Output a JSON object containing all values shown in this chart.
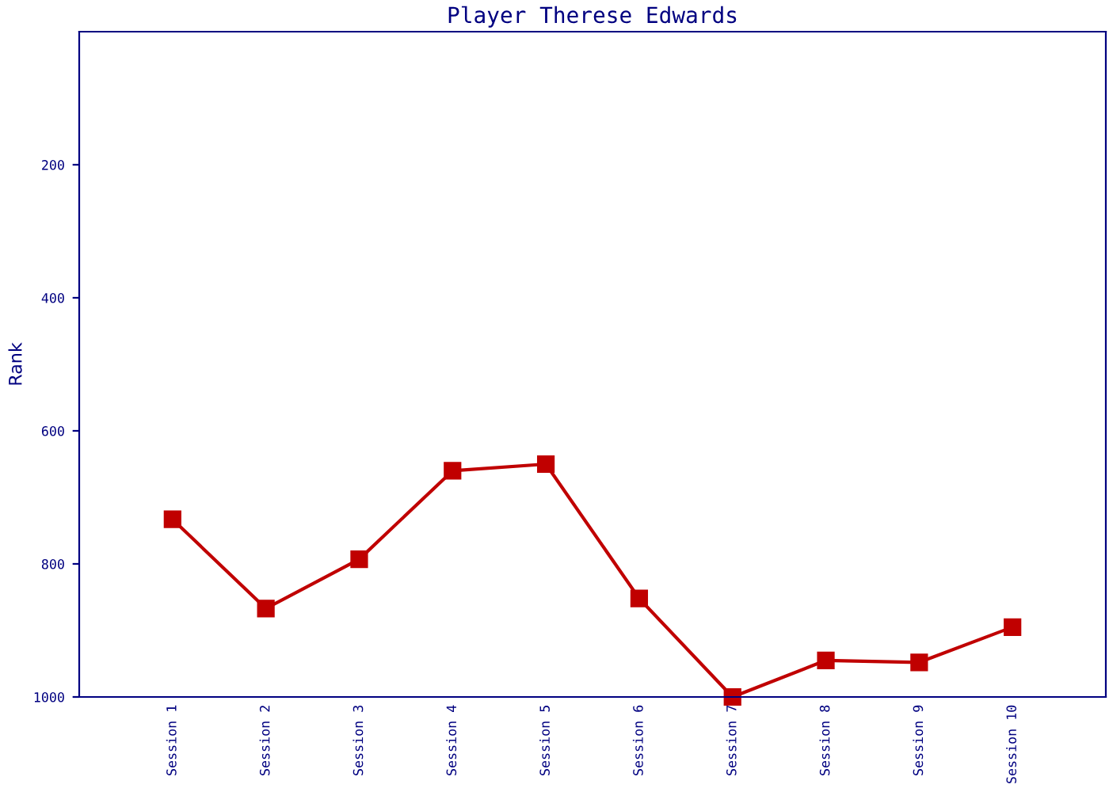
{
  "chart_data": {
    "type": "line",
    "title": "Player Therese Edwards",
    "ylabel": "Rank",
    "categories": [
      "Session 1",
      "Session 2",
      "Session 3",
      "Session 4",
      "Session 5",
      "Session 6",
      "Session 7",
      "Session 8",
      "Session 9",
      "Session 10"
    ],
    "series": [
      {
        "color": "#c00000",
        "values": [
          733,
          867,
          793,
          660,
          650,
          852,
          1000,
          945,
          948,
          895
        ]
      }
    ],
    "ylim": [
      1000,
      0
    ],
    "yticks": [
      200,
      400,
      600,
      800,
      1000
    ],
    "marker": "square",
    "line_style": "solid",
    "grid": false,
    "legend": false
  }
}
